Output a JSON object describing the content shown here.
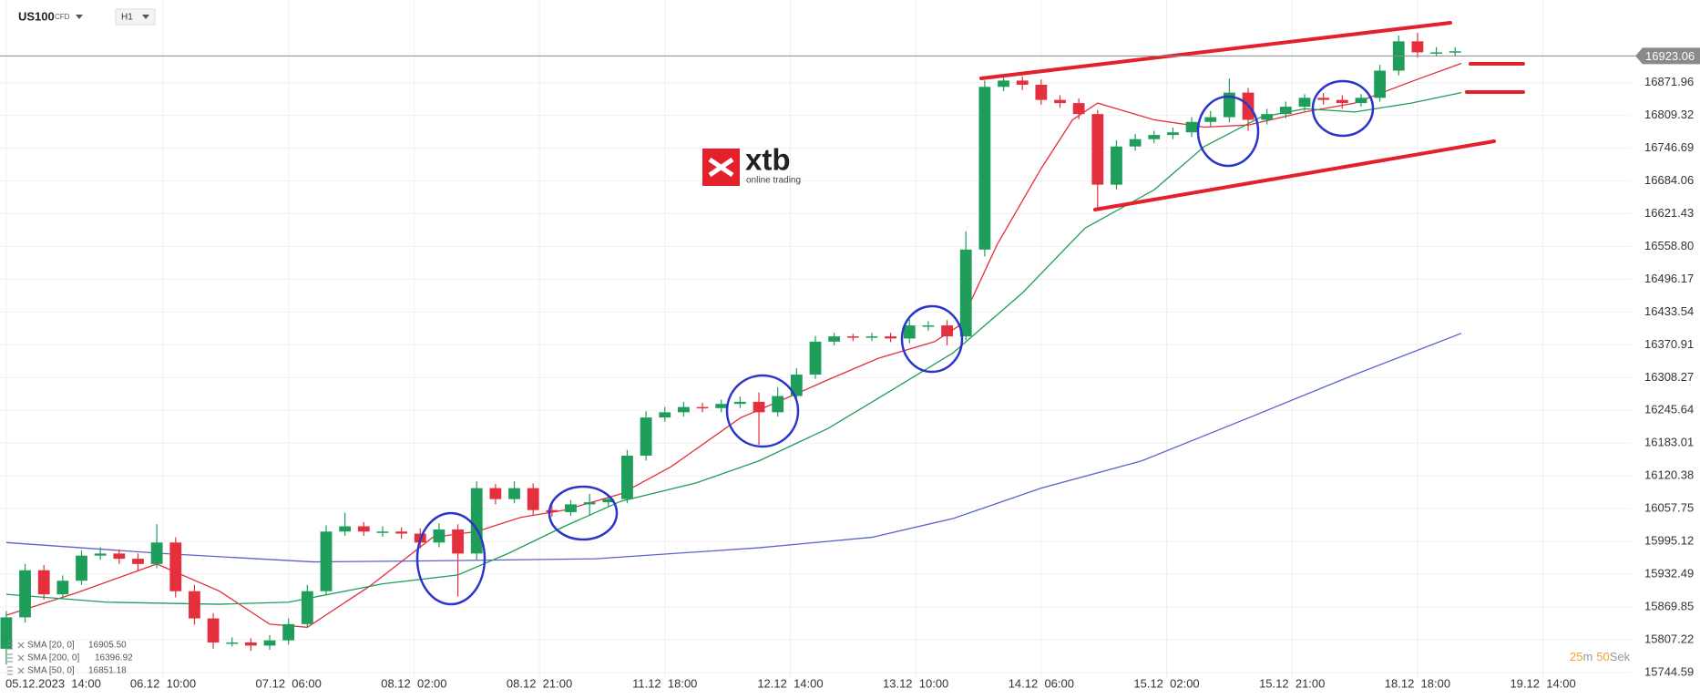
{
  "header": {
    "symbol": "US100",
    "kind": "CFD",
    "timeframe": "H1"
  },
  "logo": {
    "name": "xtb",
    "tagline": "online trading"
  },
  "countdown": {
    "minutes": "25",
    "minutes_unit": "m",
    "seconds": "50",
    "seconds_unit": "Sek"
  },
  "chart_data": {
    "type": "candlestick",
    "x": [
      0,
      3,
      6,
      9,
      12,
      15,
      18,
      21,
      24,
      27,
      30,
      33,
      36,
      39,
      42,
      45,
      48,
      51,
      54,
      57,
      60,
      63,
      66,
      69,
      72,
      75,
      78,
      81,
      84,
      87,
      90,
      93,
      96,
      99,
      102,
      105,
      108,
      111,
      114,
      117,
      120,
      123,
      126,
      129,
      132,
      135,
      138,
      141,
      144,
      147,
      150,
      153,
      156,
      159,
      162,
      165,
      168,
      171,
      174,
      177,
      180,
      183,
      186,
      189,
      192,
      195,
      198,
      201,
      204,
      207,
      210,
      213,
      216,
      219,
      222,
      225,
      228,
      231
    ],
    "open": [
      15790,
      15850,
      15940,
      15894,
      15920,
      15968,
      15972,
      15962,
      15952,
      15993,
      15900,
      15848,
      15802,
      15802,
      15796,
      15806,
      15837,
      15900,
      16014,
      16024,
      16014,
      16014,
      16010,
      15993,
      16018,
      15972,
      16097,
      16076,
      16097,
      16055,
      16051,
      16066,
      16070,
      16076,
      16159,
      16232,
      16242,
      16252,
      16250,
      16258,
      16262,
      16242,
      16273,
      16314,
      16377,
      16387,
      16385,
      16387,
      16383,
      16408,
      16408,
      16387,
      16553,
      16864,
      16876,
      16868,
      16839,
      16833,
      16812,
      16677,
      16750,
      16764,
      16772,
      16777,
      16797,
      16806,
      16853,
      16801,
      16812,
      16826,
      16843,
      16839,
      16833,
      16843,
      16895,
      16951,
      16930,
      16930
    ],
    "high": [
      15862,
      15952,
      15950,
      15930,
      15978,
      15984,
      15980,
      15972,
      16028,
      16003,
      15912,
      15858,
      15812,
      15810,
      15816,
      15848,
      15912,
      16026,
      16050,
      16032,
      16024,
      16022,
      16020,
      16030,
      16028,
      16110,
      16105,
      16110,
      16106,
      16064,
      16074,
      16086,
      16084,
      16170,
      16244,
      16252,
      16262,
      16260,
      16266,
      16272,
      16280,
      16290,
      16326,
      16388,
      16394,
      16392,
      16394,
      16394,
      16420,
      16416,
      16418,
      16588,
      16876,
      16886,
      16884,
      16878,
      16848,
      16842,
      16820,
      16762,
      16774,
      16780,
      16786,
      16806,
      16818,
      16880,
      16862,
      16822,
      16836,
      16850,
      16852,
      16848,
      16850,
      16906,
      16962,
      16967,
      16940,
      16940
    ],
    "low": [
      15760,
      15840,
      15884,
      15886,
      15912,
      15960,
      15952,
      15940,
      15944,
      15888,
      15836,
      15790,
      15794,
      15786,
      15788,
      15798,
      15830,
      15892,
      16006,
      16006,
      16004,
      16000,
      15982,
      15984,
      15890,
      15960,
      16066,
      16068,
      16046,
      16042,
      16044,
      16044,
      16062,
      16068,
      16150,
      16224,
      16234,
      16242,
      16242,
      16250,
      16180,
      16234,
      16264,
      16306,
      16370,
      16378,
      16378,
      16376,
      16374,
      16398,
      16370,
      16380,
      16540,
      16856,
      16858,
      16830,
      16824,
      16802,
      16631,
      16668,
      16742,
      16756,
      16764,
      16768,
      16788,
      16796,
      16780,
      16792,
      16804,
      16818,
      16830,
      16822,
      16826,
      16836,
      16886,
      16920,
      16922,
      16922
    ],
    "close": [
      15850,
      15940,
      15894,
      15920,
      15968,
      15972,
      15962,
      15952,
      15993,
      15900,
      15848,
      15802,
      15802,
      15796,
      15806,
      15837,
      15900,
      16014,
      16024,
      16014,
      16014,
      16010,
      15993,
      16018,
      15972,
      16097,
      16076,
      16097,
      16055,
      16051,
      16066,
      16070,
      16076,
      16159,
      16232,
      16242,
      16252,
      16250,
      16258,
      16262,
      16242,
      16273,
      16314,
      16377,
      16387,
      16385,
      16387,
      16383,
      16408,
      16408,
      16387,
      16553,
      16864,
      16876,
      16868,
      16839,
      16833,
      16812,
      16677,
      16750,
      16764,
      16772,
      16777,
      16797,
      16806,
      16853,
      16801,
      16812,
      16826,
      16843,
      16839,
      16833,
      16843,
      16895,
      16951,
      16930,
      16930,
      16932
    ],
    "up_color": "#1e9e5a",
    "down_color": "#e3303c",
    "lines": [
      {
        "name": "SMA [20, 0]",
        "last": "16905.50",
        "color": "#e3303c",
        "x": [
          0,
          11,
          24,
          34,
          42,
          48,
          58,
          68,
          75,
          82,
          89,
          98,
          106,
          117,
          124,
          131,
          139,
          148,
          152,
          158,
          165,
          170,
          174,
          183,
          191,
          198,
          207,
          215,
          224,
          232
        ],
        "values": [
          15854,
          15896,
          15952,
          15900,
          15837,
          15831,
          15910,
          16003,
          16014,
          16041,
          16055,
          16086,
          16138,
          16231,
          16267,
          16304,
          16345,
          16377,
          16408,
          16563,
          16708,
          16801,
          16833,
          16801,
          16787,
          16791,
          16816,
          16833,
          16874,
          16909
        ]
      },
      {
        "name": "SMA [200, 0]",
        "last": "16396.92",
        "color": "#5a64c8",
        "x": [
          0,
          25,
          49,
          68,
          94,
          120,
          138,
          151,
          165,
          181,
          198,
          215,
          232
        ],
        "values": [
          15993,
          15972,
          15956,
          15958,
          15962,
          15983,
          16003,
          16039,
          16097,
          16149,
          16231,
          16314,
          16393
        ]
      },
      {
        "name": "SMA [50, 0]",
        "last": "16851.18",
        "color": "#1e9e5a",
        "x": [
          0,
          16,
          34,
          45,
          60,
          72,
          80,
          89,
          98,
          110,
          120,
          131,
          141,
          151,
          162,
          172,
          183,
          191,
          200,
          207,
          215,
          224,
          232
        ],
        "values": [
          15894,
          15879,
          15875,
          15879,
          15914,
          15931,
          15972,
          16024,
          16072,
          16107,
          16149,
          16211,
          16283,
          16356,
          16470,
          16594,
          16667,
          16750,
          16806,
          16822,
          16816,
          16833,
          16853
        ]
      }
    ],
    "price": {
      "value": 16923.06,
      "label": "16923.06"
    },
    "xlim": [
      -1,
      259
    ],
    "ylim": [
      15734,
      17030
    ],
    "xticks": [
      {
        "value": 0,
        "label": "05.12.2023  14:00"
      },
      {
        "value": 25,
        "label": "06.12  10:00"
      },
      {
        "value": 45,
        "label": "07.12  06:00"
      },
      {
        "value": 65,
        "label": "08.12  02:00"
      },
      {
        "value": 85,
        "label": "08.12  21:00"
      },
      {
        "value": 105,
        "label": "11.12  18:00"
      },
      {
        "value": 125,
        "label": "12.12  14:00"
      },
      {
        "value": 145,
        "label": "13.12  10:00"
      },
      {
        "value": 165,
        "label": "14.12  06:00"
      },
      {
        "value": 185,
        "label": "15.12  02:00"
      },
      {
        "value": 205,
        "label": "15.12  21:00"
      },
      {
        "value": 225,
        "label": "18.12  18:00"
      },
      {
        "value": 245,
        "label": "19.12  14:00"
      }
    ],
    "yticks": [
      15744.59,
      15807.22,
      15869.85,
      15932.49,
      15995.12,
      16057.75,
      16120.38,
      16183.01,
      16245.64,
      16308.27,
      16370.91,
      16433.54,
      16496.17,
      {
        "value": 16558.8,
        "label": "16558.80"
      },
      16621.43,
      16684.06,
      16746.69,
      16809.32,
      16871.96
    ],
    "grid": true
  }
}
